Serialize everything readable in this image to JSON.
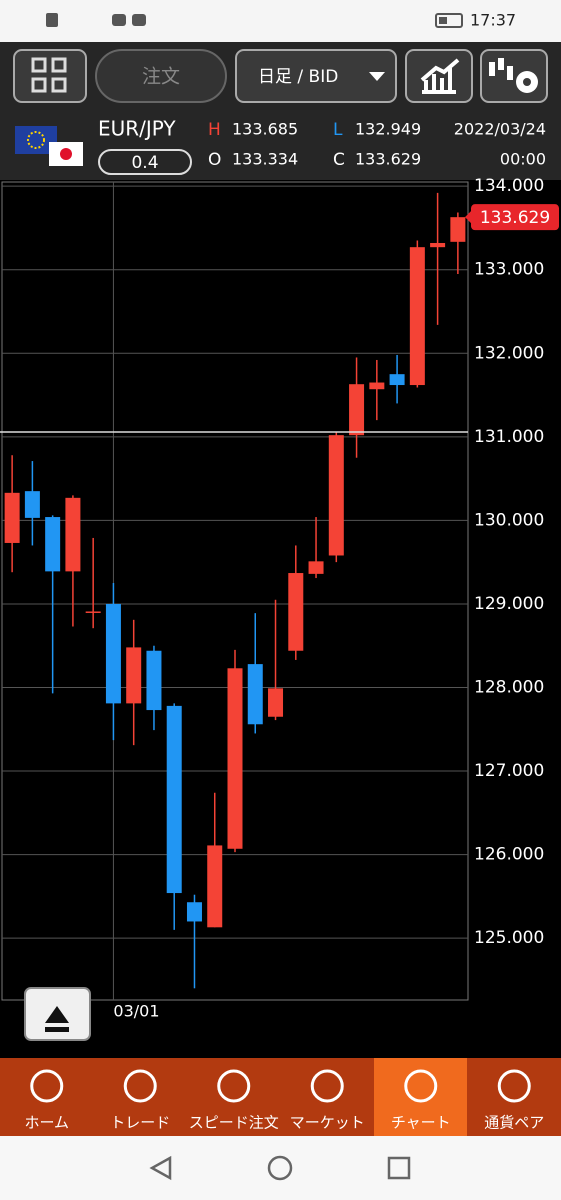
{
  "status_bar": {
    "time": "17:37"
  },
  "toolbar": {
    "order": "注文",
    "timeframe": "日足 / BID"
  },
  "quote": {
    "pair": "EUR/JPY",
    "spread": "0.4",
    "high_label": "H",
    "high": "133.685",
    "low_label": "L",
    "low": "132.949",
    "open_label": "O",
    "open": "133.334",
    "close_label": "C",
    "close": "133.629",
    "date": "2022/03/24",
    "time": "00:00"
  },
  "chart_data": {
    "type": "candlestick",
    "categories": [
      null,
      null,
      null,
      null,
      null,
      "03/01",
      null,
      null,
      null,
      null,
      null,
      null,
      null,
      null,
      null,
      null,
      null,
      null,
      null,
      null,
      null,
      null,
      null
    ],
    "open": [
      129.73,
      130.35,
      130.04,
      129.39,
      128.91,
      129.0,
      127.81,
      128.44,
      127.78,
      125.43,
      125.13,
      126.07,
      128.28,
      127.65,
      128.44,
      129.36,
      129.58,
      131.02,
      131.57,
      131.75,
      131.62,
      133.27,
      133.334
    ],
    "high": [
      130.78,
      130.71,
      130.06,
      130.3,
      129.79,
      129.25,
      128.81,
      128.5,
      127.81,
      125.52,
      126.74,
      128.45,
      128.89,
      129.05,
      129.7,
      130.04,
      131.06,
      131.95,
      131.92,
      131.98,
      133.35,
      133.92,
      133.685
    ],
    "low": [
      129.38,
      129.7,
      127.93,
      128.73,
      128.71,
      127.37,
      127.31,
      127.49,
      125.1,
      124.4,
      125.13,
      126.03,
      127.45,
      127.61,
      128.33,
      129.31,
      129.5,
      130.75,
      131.2,
      131.4,
      131.59,
      132.34,
      132.949
    ],
    "close": [
      130.33,
      130.03,
      129.39,
      130.27,
      128.91,
      127.81,
      128.48,
      127.73,
      125.54,
      125.2,
      126.11,
      128.23,
      127.56,
      127.99,
      129.37,
      129.51,
      131.02,
      131.63,
      131.65,
      131.62,
      133.27,
      133.32,
      133.629
    ],
    "up_color": "#f44336",
    "down_color": "#2196f3",
    "ylim": [
      124.26,
      134.05
    ],
    "yticks": [
      {
        "value": 134,
        "label": "134.000"
      },
      {
        "value": 133,
        "label": "133.000"
      },
      {
        "value": 132,
        "label": "132.000"
      },
      {
        "value": 131,
        "label": "131.000"
      },
      {
        "value": 130,
        "label": "130.000"
      },
      {
        "value": 129,
        "label": "129.000"
      },
      {
        "value": 128,
        "label": "128.000"
      },
      {
        "value": 127,
        "label": "127.000"
      },
      {
        "value": 126,
        "label": "126.000"
      },
      {
        "value": 125,
        "label": "125.000"
      }
    ],
    "grid": true,
    "current_price": 133.629
  },
  "bottom_nav": {
    "items": [
      "ホーム",
      "トレード",
      "スピード注文",
      "マーケット",
      "チャート",
      "通貨ペア"
    ]
  }
}
